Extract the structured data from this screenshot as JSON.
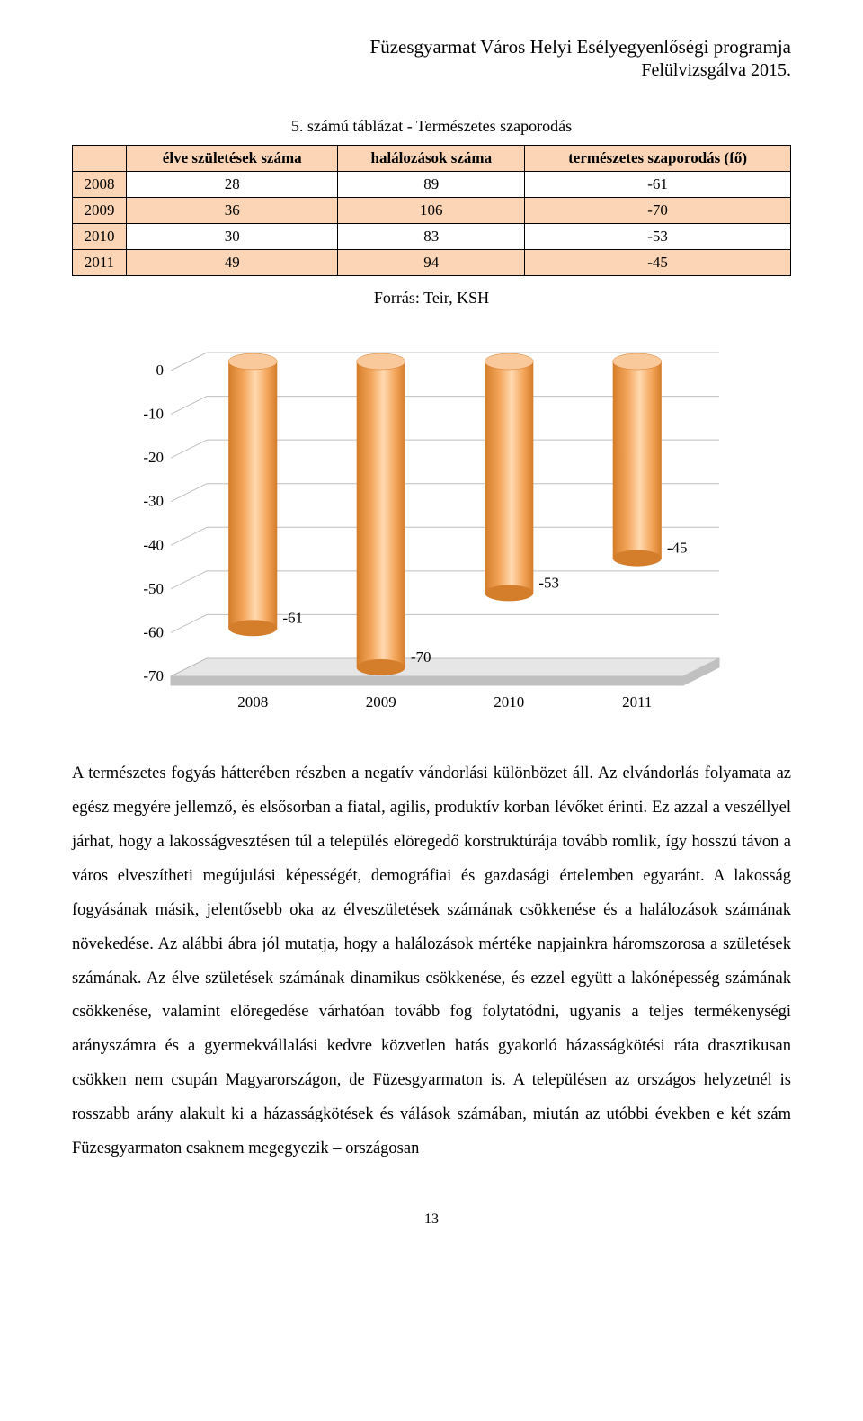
{
  "header": {
    "line1": "Füzesgyarmat Város Helyi Esélyegyenlőségi programja",
    "line2": "Felülvizsgálva 2015."
  },
  "table": {
    "title": "5. számú táblázat - Természetes szaporodás",
    "columns": [
      "",
      "élve születések száma",
      "halálozások száma",
      "természetes szaporodás (fő)"
    ],
    "rows": [
      {
        "cells": [
          "2008",
          "28",
          "89",
          "-61"
        ],
        "bg": "#ffffff"
      },
      {
        "cells": [
          "2009",
          "36",
          "106",
          "-70"
        ],
        "bg": "#fbd5b5"
      },
      {
        "cells": [
          "2010",
          "30",
          "83",
          "-53"
        ],
        "bg": "#ffffff"
      },
      {
        "cells": [
          "2011",
          "49",
          "94",
          "-45"
        ],
        "bg": "#fbd5b5"
      }
    ],
    "header_bg": "#fbd5b5",
    "year_col_bg": "#fbd5b5"
  },
  "source_line": "Forrás: Teir, KSH",
  "chart": {
    "type": "3d-cylinder-bar",
    "categories": [
      "2008",
      "2009",
      "2010",
      "2011"
    ],
    "values": [
      -61,
      -70,
      -53,
      -45
    ],
    "value_labels": [
      "-61",
      "-70",
      "-53",
      "-45"
    ],
    "ylim": [
      -70,
      0
    ],
    "ytick_step": 10,
    "yticks": [
      "0",
      "-10",
      "-20",
      "-30",
      "-40",
      "-50",
      "-60",
      "-70"
    ],
    "bar_color_light": "#f4a55a",
    "bar_color_dark": "#d47d2a",
    "bar_top_color": "#f9c99b",
    "floor_top": "#e6e6e6",
    "floor_side": "#c0c0c0",
    "grid_line": "#bfbfbf",
    "wall_color": "#ffffff",
    "axis_text": "#000000",
    "label_fontsize": 17,
    "bar_width_ratio": 0.38
  },
  "paragraph": "A természetes fogyás hátterében részben a negatív vándorlási különbözet áll. Az elvándorlás folyamata az egész megyére jellemző, és elsősorban a fiatal, agilis, produktív korban lévőket érinti. Ez azzal a veszéllyel járhat, hogy a lakosságvesztésen túl a település elöregedő korstruktúrája tovább romlik, így hosszú távon a város elveszítheti megújulási képességét, demográfiai és gazdasági értelemben egyaránt. A lakosság fogyásának másik, jelentősebb oka az élveszületések számának csökkenése és a halálozások számának növekedése. Az alábbi ábra jól mutatja, hogy a halálozások mértéke napjainkra háromszorosa a születések számának. Az élve születések számának dinamikus csökkenése, és ezzel együtt a lakónépesség számának csökkenése, valamint elöregedése várhatóan tovább fog folytatódni, ugyanis a teljes termékenységi arányszámra és a gyermekvállalási kedvre közvetlen hatás gyakorló házasságkötési ráta drasztikusan csökken nem csupán Magyarországon, de Füzesgyarmaton is. A településen az országos helyzetnél is rosszabb arány alakult ki a házasságkötések és válások számában, miután az utóbbi években e két szám Füzesgyarmaton csaknem megegyezik – országosan",
  "page_number": "13"
}
